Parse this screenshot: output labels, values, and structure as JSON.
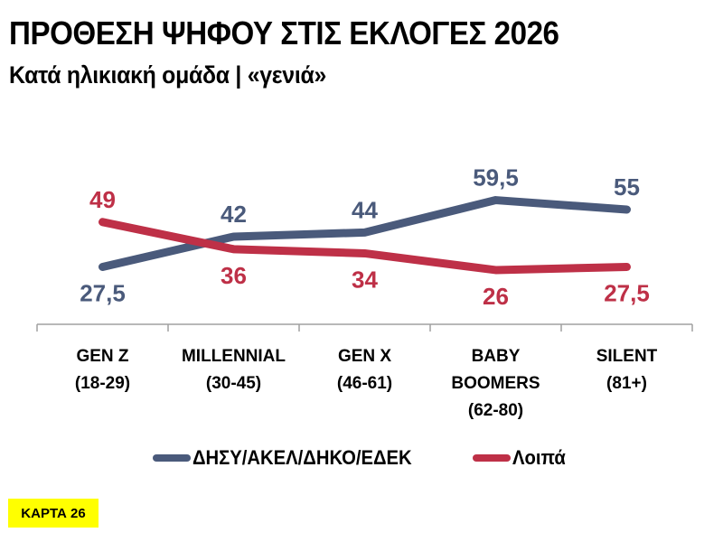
{
  "header": {
    "title": "ΠΡΟΘΕΣΗ ΨΗΦΟΥ ΣΤΙΣ ΕΚΛΟΓΕΣ 2026",
    "subtitle": "Κατά ηλικιακή ομάδα | «γενιά»"
  },
  "badge": {
    "label": "ΚΑΡΤΑ 26",
    "color": "#FFFF00"
  },
  "colors": {
    "series1": "#4A5A7B",
    "series2": "#BE3047",
    "axis": "#A0A0A0"
  },
  "legend": [
    {
      "label": "ΔΗΣΥ/ΑΚΕΛ/ΔΗΚΟ/ΕΔΕΚ",
      "color": "#4A5A7B"
    },
    {
      "label": "Λοιπά",
      "color": "#BE3047"
    }
  ],
  "chart_data": {
    "type": "line",
    "title": "ΠΡΟΘΕΣΗ ΨΗΦΟΥ ΣΤΙΣ ΕΚΛΟΓΕΣ 2026",
    "subtitle": "Κατά ηλικιακή ομάδα | «γενιά»",
    "categories": [
      [
        "GEN Z",
        "(18-29)"
      ],
      [
        "MILLENNIAL",
        "(30-45)"
      ],
      [
        "GEN X",
        "(46-61)"
      ],
      [
        "BABY",
        "BOOMERS",
        "(62-80)"
      ],
      [
        "SILENT",
        "(81+)"
      ]
    ],
    "series": [
      {
        "name": "ΔΗΣΥ/ΑΚΕΛ/ΔΗΚΟ/ΕΔΕΚ",
        "color": "#4A5A7B",
        "values": [
          27.5,
          42,
          44,
          59.5,
          55
        ],
        "labels": [
          "27,5",
          "42",
          "44",
          "59,5",
          "55"
        ],
        "label_position": [
          "below",
          "above",
          "above",
          "above",
          "above"
        ]
      },
      {
        "name": "Λοιπά",
        "color": "#BE3047",
        "values": [
          49,
          36,
          34,
          26,
          27.5
        ],
        "labels": [
          "49",
          "36",
          "34",
          "26",
          "27,5"
        ],
        "label_position": [
          "above",
          "below",
          "below",
          "below",
          "below"
        ]
      }
    ],
    "xlabel": "",
    "ylabel": "",
    "ylim": [
      0,
      70
    ],
    "grid": false,
    "legend_position": "bottom"
  }
}
